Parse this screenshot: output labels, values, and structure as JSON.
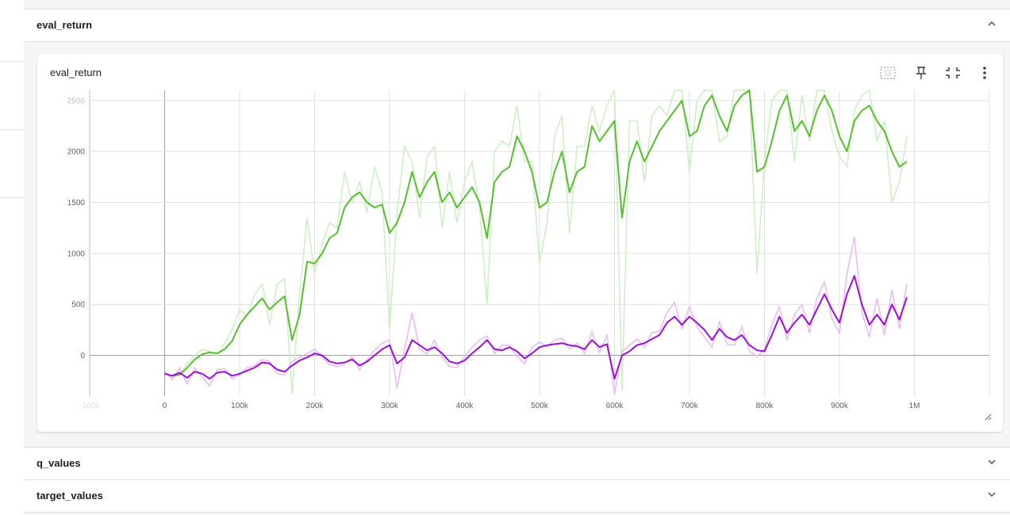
{
  "sections": {
    "eval_return": {
      "title": "eval_return"
    },
    "q_values": {
      "title": "q_values"
    },
    "target_values": {
      "title": "target_values"
    }
  },
  "card": {
    "title": "eval_return"
  },
  "icons": {
    "fit": "fit-domain-icon",
    "pin": "pin-icon",
    "collapse": "collapse-icon",
    "more": "more-vert-icon",
    "resize": "resize-handle-icon"
  },
  "chart_data": {
    "type": "line",
    "title": "eval_return",
    "xlim": [
      -100000,
      1100000
    ],
    "ylim": [
      -400,
      2600
    ],
    "grid": true,
    "x_ticks": [
      {
        "v": -100000,
        "label": "-100k"
      },
      {
        "v": 0,
        "label": "0"
      },
      {
        "v": 100000,
        "label": "100k"
      },
      {
        "v": 200000,
        "label": "200k"
      },
      {
        "v": 300000,
        "label": "300k"
      },
      {
        "v": 400000,
        "label": "400k"
      },
      {
        "v": 500000,
        "label": "500k"
      },
      {
        "v": 600000,
        "label": "600k"
      },
      {
        "v": 700000,
        "label": "700k"
      },
      {
        "v": 800000,
        "label": "800k"
      },
      {
        "v": 900000,
        "label": "900k"
      },
      {
        "v": 1000000,
        "label": "1M"
      }
    ],
    "y_ticks": [
      {
        "v": 0,
        "label": "0"
      },
      {
        "v": 500,
        "label": "500"
      },
      {
        "v": 1000,
        "label": "1000"
      },
      {
        "v": 1500,
        "label": "1500"
      },
      {
        "v": 2000,
        "label": "2000"
      },
      {
        "v": 2500,
        "label": "2500"
      }
    ],
    "series": [
      {
        "color": "#57bf2f",
        "raw_color": "#cdeec3",
        "x": [
          0,
          10000,
          20000,
          30000,
          40000,
          50000,
          60000,
          70000,
          80000,
          90000,
          100000,
          110000,
          120000,
          130000,
          140000,
          150000,
          160000,
          170000,
          180000,
          190000,
          200000,
          210000,
          220000,
          230000,
          240000,
          250000,
          260000,
          270000,
          280000,
          290000,
          300000,
          310000,
          320000,
          330000,
          340000,
          350000,
          360000,
          370000,
          380000,
          390000,
          400000,
          410000,
          420000,
          430000,
          440000,
          450000,
          460000,
          470000,
          480000,
          490000,
          500000,
          510000,
          520000,
          530000,
          540000,
          550000,
          560000,
          570000,
          580000,
          590000,
          600000,
          610000,
          620000,
          630000,
          640000,
          650000,
          660000,
          670000,
          680000,
          690000,
          700000,
          710000,
          720000,
          730000,
          740000,
          750000,
          760000,
          770000,
          780000,
          790000,
          800000,
          810000,
          820000,
          830000,
          840000,
          850000,
          860000,
          870000,
          880000,
          890000,
          900000,
          910000,
          920000,
          930000,
          940000,
          950000,
          960000,
          970000,
          980000,
          990000
        ],
        "smoothed": [
          -180,
          -200,
          -190,
          -120,
          -40,
          10,
          30,
          20,
          60,
          140,
          300,
          400,
          480,
          560,
          450,
          520,
          580,
          150,
          400,
          920,
          900,
          1000,
          1150,
          1200,
          1450,
          1550,
          1600,
          1500,
          1450,
          1480,
          1200,
          1300,
          1500,
          1800,
          1550,
          1700,
          1800,
          1500,
          1600,
          1450,
          1550,
          1650,
          1500,
          1150,
          1700,
          1800,
          1850,
          2150,
          2000,
          1800,
          1450,
          1500,
          1800,
          2000,
          1600,
          1800,
          1850,
          2250,
          2100,
          2200,
          2300,
          1350,
          1900,
          2100,
          1900,
          2050,
          2200,
          2300,
          2400,
          2500,
          2150,
          2200,
          2450,
          2550,
          2350,
          2200,
          2450,
          2550,
          2600,
          1800,
          1850,
          2100,
          2400,
          2550,
          2200,
          2300,
          2150,
          2400,
          2550,
          2400,
          2150,
          2000,
          2300,
          2400,
          2450,
          2300,
          2200,
          2000,
          1850,
          1900
        ],
        "raw": [
          -150,
          -230,
          -180,
          -80,
          0,
          60,
          40,
          -10,
          120,
          250,
          450,
          380,
          600,
          700,
          300,
          700,
          750,
          -380,
          600,
          1350,
          800,
          1100,
          1300,
          1250,
          1800,
          1500,
          1700,
          1400,
          1850,
          1600,
          250,
          1400,
          2050,
          1900,
          1350,
          1950,
          2050,
          1250,
          1800,
          1300,
          1700,
          1900,
          1450,
          500,
          2000,
          2100,
          2050,
          2450,
          1900,
          1900,
          900,
          1300,
          2150,
          2350,
          1200,
          2050,
          2050,
          2450,
          2200,
          2450,
          2600,
          -350,
          2300,
          2300,
          1700,
          2350,
          2450,
          2350,
          2650,
          2650,
          1800,
          2500,
          2650,
          2650,
          2100,
          2150,
          2650,
          2650,
          2650,
          800,
          1900,
          2500,
          2650,
          2650,
          1900,
          2550,
          2100,
          2600,
          2650,
          2200,
          1950,
          1850,
          2400,
          2550,
          2600,
          2100,
          2300,
          1500,
          1700,
          2150
        ]
      },
      {
        "color": "#9b12d4",
        "raw_color": "#eab8f7",
        "x": [
          0,
          10000,
          20000,
          30000,
          40000,
          50000,
          60000,
          70000,
          80000,
          90000,
          100000,
          110000,
          120000,
          130000,
          140000,
          150000,
          160000,
          170000,
          180000,
          190000,
          200000,
          210000,
          220000,
          230000,
          240000,
          250000,
          260000,
          270000,
          280000,
          290000,
          300000,
          310000,
          320000,
          330000,
          340000,
          350000,
          360000,
          370000,
          380000,
          390000,
          400000,
          410000,
          420000,
          430000,
          440000,
          450000,
          460000,
          470000,
          480000,
          490000,
          500000,
          510000,
          520000,
          530000,
          540000,
          550000,
          560000,
          570000,
          580000,
          590000,
          600000,
          610000,
          620000,
          630000,
          640000,
          650000,
          660000,
          670000,
          680000,
          690000,
          700000,
          710000,
          720000,
          730000,
          740000,
          750000,
          760000,
          770000,
          780000,
          790000,
          800000,
          810000,
          820000,
          830000,
          840000,
          850000,
          860000,
          870000,
          880000,
          890000,
          900000,
          910000,
          920000,
          930000,
          940000,
          950000,
          960000,
          970000,
          980000,
          990000
        ],
        "smoothed": [
          -180,
          -200,
          -170,
          -220,
          -160,
          -180,
          -230,
          -170,
          -160,
          -200,
          -180,
          -150,
          -120,
          -70,
          -80,
          -140,
          -160,
          -100,
          -50,
          -20,
          20,
          0,
          -60,
          -80,
          -70,
          -40,
          -100,
          -60,
          0,
          60,
          100,
          -80,
          -20,
          150,
          100,
          50,
          80,
          20,
          -60,
          -80,
          -50,
          20,
          80,
          150,
          60,
          50,
          80,
          40,
          -30,
          20,
          80,
          100,
          110,
          120,
          100,
          90,
          60,
          150,
          80,
          110,
          -230,
          0,
          40,
          100,
          120,
          160,
          200,
          320,
          380,
          300,
          380,
          320,
          250,
          150,
          260,
          180,
          150,
          200,
          100,
          50,
          40,
          200,
          380,
          220,
          320,
          400,
          300,
          450,
          600,
          450,
          320,
          600,
          780,
          500,
          300,
          400,
          300,
          500,
          350,
          570
        ],
        "raw": [
          -150,
          -240,
          -120,
          -280,
          -120,
          -210,
          -300,
          -140,
          -130,
          -230,
          -190,
          -120,
          -100,
          -40,
          -60,
          -180,
          -190,
          -60,
          -20,
          20,
          60,
          -20,
          -90,
          -110,
          -90,
          -10,
          -140,
          -40,
          50,
          120,
          150,
          -320,
          60,
          420,
          60,
          10,
          150,
          -20,
          -110,
          -120,
          -10,
          80,
          150,
          190,
          20,
          100,
          100,
          -10,
          -80,
          80,
          130,
          80,
          150,
          170,
          60,
          120,
          20,
          230,
          30,
          200,
          -380,
          40,
          100,
          160,
          80,
          220,
          240,
          420,
          520,
          260,
          480,
          280,
          180,
          80,
          330,
          110,
          100,
          280,
          40,
          -10,
          60,
          300,
          480,
          150,
          400,
          500,
          220,
          560,
          720,
          360,
          220,
          800,
          1160,
          420,
          180,
          560,
          200,
          640,
          260,
          700
        ]
      }
    ]
  }
}
